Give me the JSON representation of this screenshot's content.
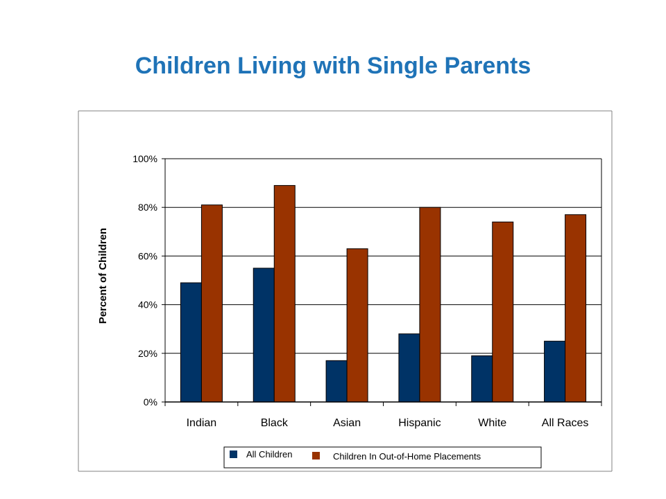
{
  "title": "Children Living with Single Parents",
  "chart_data": {
    "type": "bar",
    "categories": [
      "Indian",
      "Black",
      "Asian",
      "Hispanic",
      "White",
      "All Races"
    ],
    "series": [
      {
        "name": "All Children",
        "values": [
          49,
          55,
          17,
          28,
          19,
          25
        ],
        "color": "#003366"
      },
      {
        "name": "Children In Out-of-Home Placements",
        "values": [
          81,
          89,
          63,
          80,
          74,
          77
        ],
        "color": "#993300"
      }
    ],
    "ylabel": "Percent of Children",
    "xlabel": "",
    "ylim": [
      0,
      100
    ],
    "yticks": [
      "0%",
      "20%",
      "40%",
      "60%",
      "80%",
      "100%"
    ],
    "grid": true,
    "legend_position": "bottom"
  }
}
